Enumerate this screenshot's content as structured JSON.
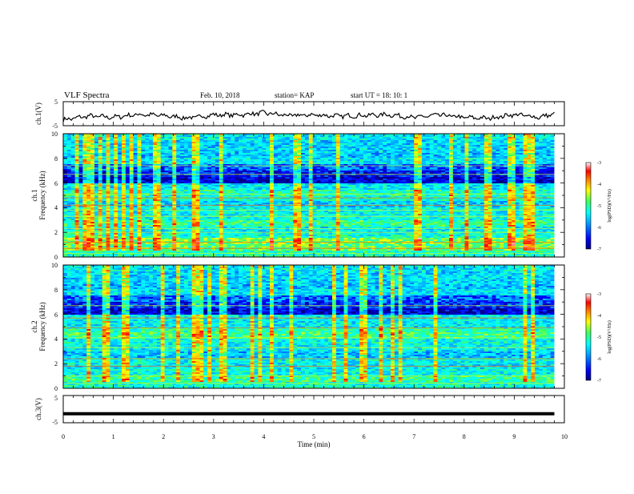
{
  "header": {
    "title": "VLF Spectra",
    "date": "Feb. 10, 2018",
    "station": "station= KAP",
    "start": "start UT = 18: 10: 1"
  },
  "chart_data": [
    {
      "type": "line",
      "panel": "ch1-voltage",
      "ylabel": "ch.1(V)",
      "ylim": [
        -5,
        5
      ],
      "yticks": [
        "5",
        "-5"
      ],
      "x": [
        0,
        0.5,
        1,
        1.5,
        2,
        2.5,
        3,
        3.5,
        4,
        4.5,
        5,
        5.5,
        6,
        6.5,
        7,
        7.5,
        8,
        8.5,
        9,
        9.5,
        9.8
      ],
      "values": [
        -2.6,
        -1.0,
        -1.5,
        -0.3,
        -0.8,
        -1.8,
        -0.5,
        -0.5,
        0.3,
        -0.8,
        -0.5,
        -1.0,
        -0.7,
        -0.4,
        -1.6,
        -0.5,
        -1.6,
        -1.9,
        -0.3,
        -1.5,
        -0.1
      ]
    },
    {
      "type": "heatmap",
      "panel": "ch1-spectrogram",
      "ylabel": "ch.1",
      "ylabel2": "Frequency (kHz)",
      "ylim": [
        0,
        10
      ],
      "yticks": [
        "0",
        "2",
        "4",
        "6",
        "8",
        "10"
      ],
      "colorbar_label": "log(PSD)(V²/Hz)",
      "colorbar_ticks": [
        "-3",
        "-4",
        "-5",
        "-6",
        "-7"
      ],
      "band_profile": [
        -5.3,
        -5.0,
        -4.9,
        -5.4,
        -5.6,
        -5.2,
        -5.5,
        -5.5,
        -5.7,
        -5.4,
        -5.3,
        -5.6,
        -6.7,
        -6.5,
        -6.2,
        -5.6,
        -5.8,
        -5.7,
        -5.7,
        -5.6
      ],
      "line_freqs": [
        0.3,
        0.7,
        1.2,
        2.0,
        2.3,
        3.3,
        3.8,
        4.2,
        4.8,
        5.1,
        6.7,
        7.4
      ]
    },
    {
      "type": "heatmap",
      "panel": "ch2-spectrogram",
      "ylabel": "ch.2",
      "ylabel2": "Frequency (kHz)",
      "ylim": [
        0,
        10
      ],
      "yticks": [
        "0",
        "2",
        "4",
        "6",
        "8",
        "10"
      ],
      "colorbar_label": "log(PSD)(V²/Hz)",
      "colorbar_ticks": [
        "-3",
        "-4",
        "-5",
        "-6",
        "-7"
      ],
      "band_profile": [
        -5.4,
        -5.2,
        -5.5,
        -5.6,
        -5.5,
        -5.8,
        -5.6,
        -5.5,
        -5.1,
        -5.3,
        -5.6,
        -5.6,
        -6.7,
        -6.4,
        -6.2,
        -5.6,
        -5.8,
        -5.7,
        -5.7,
        -5.6
      ],
      "line_freqs": [
        0.4,
        1.0,
        1.8,
        2.4,
        3.3,
        4.1,
        4.9,
        5.7,
        6.7
      ]
    },
    {
      "type": "line",
      "panel": "ch3-voltage",
      "ylabel": "ch.3(V)",
      "ylim": [
        -5,
        5
      ],
      "yticks": [
        "5",
        "-5"
      ],
      "xlabel": "Time (min)",
      "xlim": [
        0,
        10
      ],
      "xticks": [
        "0",
        "1",
        "2",
        "3",
        "4",
        "5",
        "6",
        "7",
        "8",
        "9",
        "10"
      ],
      "x": [
        0,
        9.8
      ],
      "values": [
        -1.7,
        -1.7
      ]
    }
  ],
  "colors": {
    "colormap": [
      "#000080",
      "#0000ff",
      "#00a0ff",
      "#00ffff",
      "#40ff60",
      "#ffff00",
      "#ff8000",
      "#ff0000",
      "#ffffff"
    ]
  }
}
